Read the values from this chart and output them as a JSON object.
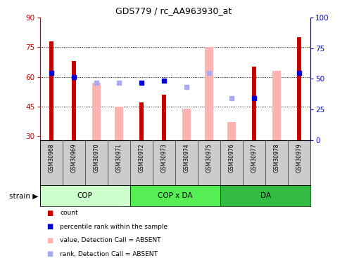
{
  "title": "GDS779 / rc_AA963930_at",
  "samples": [
    "GSM30968",
    "GSM30969",
    "GSM30970",
    "GSM30971",
    "GSM30972",
    "GSM30973",
    "GSM30974",
    "GSM30975",
    "GSM30976",
    "GSM30977",
    "GSM30978",
    "GSM30979"
  ],
  "groups": [
    {
      "label": "COP",
      "samples": [
        0,
        1,
        2,
        3
      ],
      "color": "#b2f0b2"
    },
    {
      "label": "COP x DA",
      "samples": [
        4,
        5,
        6,
        7
      ],
      "color": "#44dd44"
    },
    {
      "label": "DA",
      "samples": [
        8,
        9,
        10,
        11
      ],
      "color": "#22cc33"
    }
  ],
  "ylim_left": [
    28,
    90
  ],
  "ylim_right": [
    0,
    100
  ],
  "yticks_left": [
    30,
    45,
    60,
    75,
    90
  ],
  "yticks_right": [
    0,
    25,
    50,
    75,
    100
  ],
  "hlines": [
    45,
    60,
    75
  ],
  "bar_count_values": [
    78,
    68,
    null,
    null,
    47,
    51,
    null,
    null,
    null,
    65,
    null,
    80
  ],
  "bar_absent_values": [
    null,
    null,
    57,
    45,
    null,
    null,
    44,
    75,
    37,
    null,
    63,
    null
  ],
  "dot_rank_present": [
    62,
    60,
    null,
    null,
    57,
    58,
    null,
    null,
    null,
    49,
    null,
    62
  ],
  "dot_rank_absent": [
    null,
    null,
    57,
    57,
    null,
    null,
    55,
    62,
    49,
    null,
    null,
    null
  ],
  "color_count_bar": "#cc0000",
  "color_absent_bar": "#ffb3b3",
  "color_rank_present": "#0000cc",
  "color_rank_absent": "#aaaaee",
  "left_axis_color": "#cc0000",
  "right_axis_color": "#0000cc",
  "strain_label": "strain",
  "legend_items": [
    {
      "label": "count",
      "color": "#cc0000"
    },
    {
      "label": "percentile rank within the sample",
      "color": "#0000cc"
    },
    {
      "label": "value, Detection Call = ABSENT",
      "color": "#ffb3b3"
    },
    {
      "label": "rank, Detection Call = ABSENT",
      "color": "#aaaaee"
    }
  ]
}
